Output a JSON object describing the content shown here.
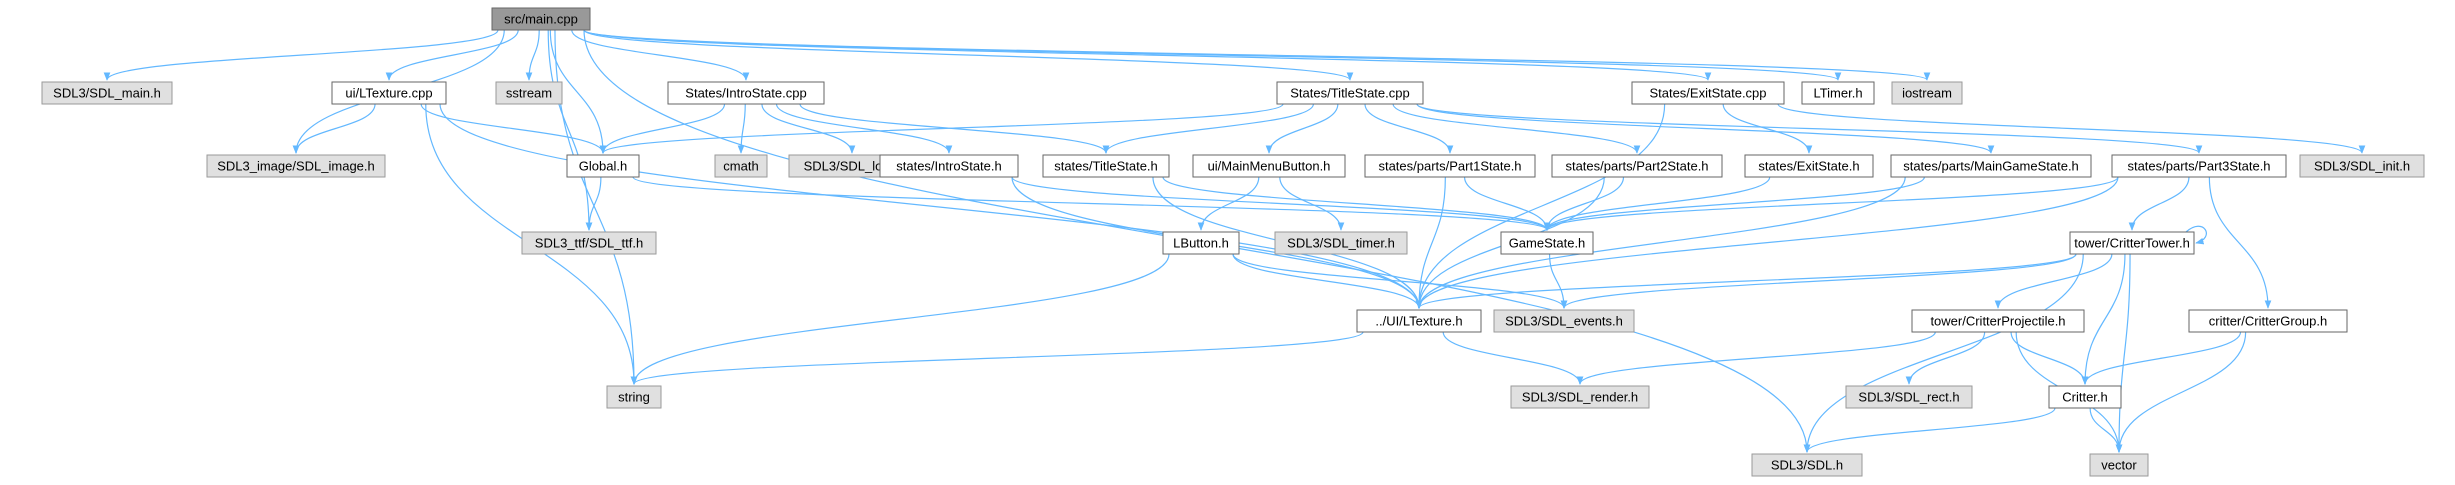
{
  "nodes": [
    {
      "id": "main",
      "label": "src/main.cpp",
      "style": "root"
    },
    {
      "id": "sdlmain",
      "label": "SDL3/SDL_main.h",
      "style": "gray"
    },
    {
      "id": "ltcpp",
      "label": "ui/LTexture.cpp",
      "style": "white"
    },
    {
      "id": "sstream",
      "label": "sstream",
      "style": "gray"
    },
    {
      "id": "introcpp",
      "label": "States/IntroState.cpp",
      "style": "white"
    },
    {
      "id": "titlecpp",
      "label": "States/TitleState.cpp",
      "style": "white"
    },
    {
      "id": "exitcpp",
      "label": "States/ExitState.cpp",
      "style": "white"
    },
    {
      "id": "ltimer",
      "label": "LTimer.h",
      "style": "white"
    },
    {
      "id": "iostream",
      "label": "iostream",
      "style": "gray"
    },
    {
      "id": "sdlimage",
      "label": "SDL3_image/SDL_image.h",
      "style": "gray"
    },
    {
      "id": "global",
      "label": "Global.h",
      "style": "white"
    },
    {
      "id": "cmath",
      "label": "cmath",
      "style": "gray"
    },
    {
      "id": "sdllog",
      "label": "SDL3/SDL_log.h",
      "style": "gray"
    },
    {
      "id": "introh",
      "label": "states/IntroState.h",
      "style": "white"
    },
    {
      "id": "titleh",
      "label": "states/TitleState.h",
      "style": "white"
    },
    {
      "id": "mmbutton",
      "label": "ui/MainMenuButton.h",
      "style": "white"
    },
    {
      "id": "part1",
      "label": "states/parts/Part1State.h",
      "style": "white"
    },
    {
      "id": "part2",
      "label": "states/parts/Part2State.h",
      "style": "white"
    },
    {
      "id": "exith",
      "label": "states/ExitState.h",
      "style": "white"
    },
    {
      "id": "maingame",
      "label": "states/parts/MainGameState.h",
      "style": "white"
    },
    {
      "id": "part3",
      "label": "states/parts/Part3State.h",
      "style": "white"
    },
    {
      "id": "sdlinit",
      "label": "SDL3/SDL_init.h",
      "style": "gray"
    },
    {
      "id": "sdlttf",
      "label": "SDL3_ttf/SDL_ttf.h",
      "style": "gray"
    },
    {
      "id": "lbutton",
      "label": "LButton.h",
      "style": "white"
    },
    {
      "id": "sdltimer",
      "label": "SDL3/SDL_timer.h",
      "style": "gray"
    },
    {
      "id": "gamestate",
      "label": "GameState.h",
      "style": "white"
    },
    {
      "id": "critter_tower",
      "label": "tower/CritterTower.h",
      "style": "white"
    },
    {
      "id": "ltexh",
      "label": "../UI/LTexture.h",
      "style": "white"
    },
    {
      "id": "sdlevents",
      "label": "SDL3/SDL_events.h",
      "style": "gray"
    },
    {
      "id": "projectile",
      "label": "tower/CritterProjectile.h",
      "style": "white"
    },
    {
      "id": "crittergroup",
      "label": "critter/CritterGroup.h",
      "style": "white"
    },
    {
      "id": "string",
      "label": "string",
      "style": "gray"
    },
    {
      "id": "sdlrender",
      "label": "SDL3/SDL_render.h",
      "style": "gray"
    },
    {
      "id": "sdlrect",
      "label": "SDL3/SDL_rect.h",
      "style": "gray"
    },
    {
      "id": "critter",
      "label": "Critter.h",
      "style": "white"
    },
    {
      "id": "sdlh",
      "label": "SDL3/SDL.h",
      "style": "gray"
    },
    {
      "id": "vector",
      "label": "vector",
      "style": "gray"
    }
  ],
  "colors": {
    "edge": "#63b8ff",
    "root_fill": "#999999",
    "gray_fill": "#e0e0e0",
    "white_fill": "#ffffff"
  }
}
